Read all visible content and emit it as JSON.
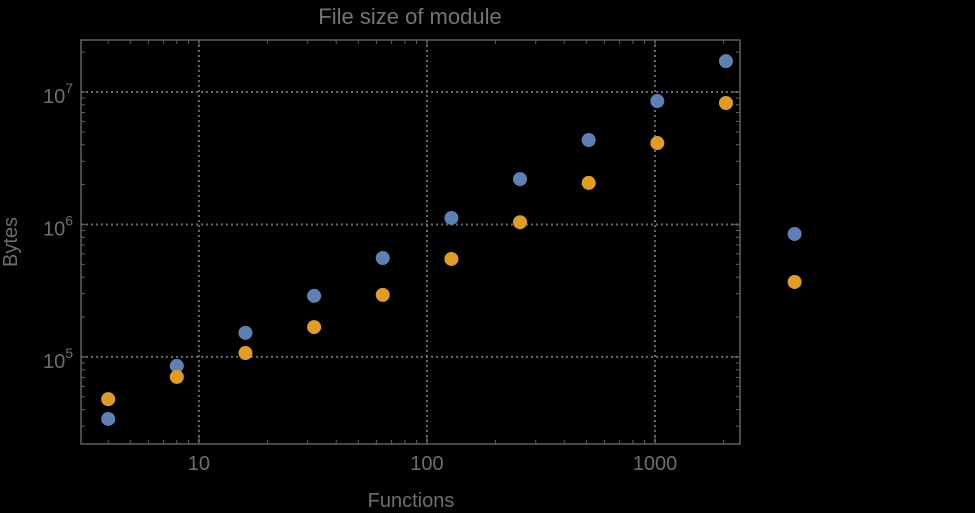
{
  "colors": {
    "background": "#000000",
    "frame": "#606060",
    "grid": "#6a6a6a",
    "text": "#6e6e6e",
    "title_text": "#747474",
    "series_blue": "#5E81B5",
    "series_orange": "#E19C24"
  },
  "chart_data": {
    "type": "scatter",
    "title": "File size of module",
    "xlabel": "Functions",
    "ylabel": "Bytes",
    "x_scale": "log",
    "y_scale": "log",
    "grid": "dotted gridlines at decades",
    "legend": "none",
    "x_ticks": [
      10,
      100,
      1000
    ],
    "y_ticks": [
      100000,
      1000000,
      10000000
    ],
    "xlim": [
      3.04,
      2360
    ],
    "ylim": [
      22000,
      24700000
    ],
    "x": [
      4,
      8,
      16,
      32,
      64,
      128,
      256,
      512,
      1024,
      2048,
      4096
    ],
    "series": [
      {
        "name": "series-blue",
        "color": "#5E81B5",
        "values": [
          34000,
          85500,
          152000,
          289000,
          558000,
          1120000,
          2200000,
          4340000,
          8550000,
          17100000,
          848000
        ]
      },
      {
        "name": "series-orange",
        "color": "#E19C24",
        "values": [
          48000,
          70600,
          107000,
          168000,
          294000,
          549000,
          1040000,
          2060000,
          4120000,
          8260000,
          368000
        ]
      }
    ]
  }
}
